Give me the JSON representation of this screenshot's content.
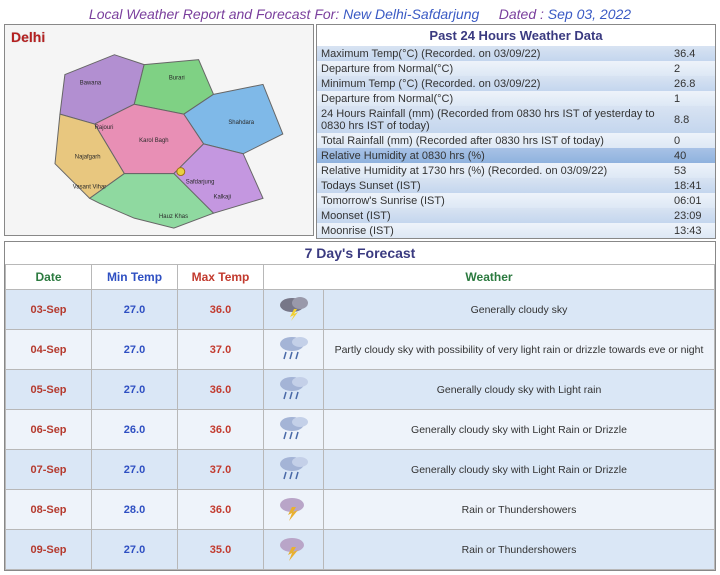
{
  "header": {
    "title_static": "Local Weather Report and Forecast For:",
    "location": "New Delhi-Safdarjung",
    "dated_label": "Dated :",
    "date": "Sep 03, 2022"
  },
  "map": {
    "region": "Delhi"
  },
  "past24": {
    "title": "Past 24 Hours Weather Data",
    "rows": [
      {
        "label": "Maximum Temp(°C) (Recorded. on 03/09/22)",
        "value": "36.4"
      },
      {
        "label": "Departure from Normal(°C)",
        "value": "2"
      },
      {
        "label": "Minimum Temp (°C) (Recorded. on 03/09/22)",
        "value": "26.8"
      },
      {
        "label": "Departure from Normal(°C)",
        "value": "1"
      },
      {
        "label": "24 Hours Rainfall (mm) (Recorded from 0830 hrs IST of yesterday to 0830 hrs IST of today)",
        "value": "8.8"
      },
      {
        "label": "Total Rainfall (mm) (Recorded after 0830 hrs IST of today)",
        "value": "0"
      },
      {
        "label": "Relative Humidity at 0830 hrs (%)",
        "value": "40"
      },
      {
        "label": "Relative Humidity at 1730 hrs (%) (Recorded. on 03/09/22)",
        "value": "53"
      },
      {
        "label": "Todays Sunset (IST)",
        "value": "18:41"
      },
      {
        "label": "Tomorrow's Sunrise (IST)",
        "value": "06:01"
      },
      {
        "label": "Moonset (IST)",
        "value": "23:09"
      },
      {
        "label": "Moonrise (IST)",
        "value": "13:43"
      }
    ]
  },
  "forecast": {
    "title": "7 Day's Forecast",
    "columns": {
      "date": "Date",
      "min": "Min Temp",
      "max": "Max Temp",
      "weather": "Weather"
    },
    "rows": [
      {
        "date": "03-Sep",
        "min": "27.0",
        "max": "36.0",
        "icon": "cloud-thunder",
        "desc": "Generally cloudy sky"
      },
      {
        "date": "04-Sep",
        "min": "27.0",
        "max": "37.0",
        "icon": "cloud-rain",
        "desc": "Partly cloudy sky with possibility of very light rain or drizzle towards eve or night"
      },
      {
        "date": "05-Sep",
        "min": "27.0",
        "max": "36.0",
        "icon": "cloud-rain",
        "desc": "Generally cloudy sky with Light rain"
      },
      {
        "date": "06-Sep",
        "min": "26.0",
        "max": "36.0",
        "icon": "cloud-rain",
        "desc": "Generally cloudy sky with Light Rain or Drizzle"
      },
      {
        "date": "07-Sep",
        "min": "27.0",
        "max": "37.0",
        "icon": "cloud-rain",
        "desc": "Generally cloudy sky with Light Rain or Drizzle"
      },
      {
        "date": "08-Sep",
        "min": "28.0",
        "max": "36.0",
        "icon": "thunder",
        "desc": "Rain or Thundershowers"
      },
      {
        "date": "09-Sep",
        "min": "27.0",
        "max": "35.0",
        "icon": "thunder",
        "desc": "Rain or Thundershowers"
      }
    ]
  }
}
